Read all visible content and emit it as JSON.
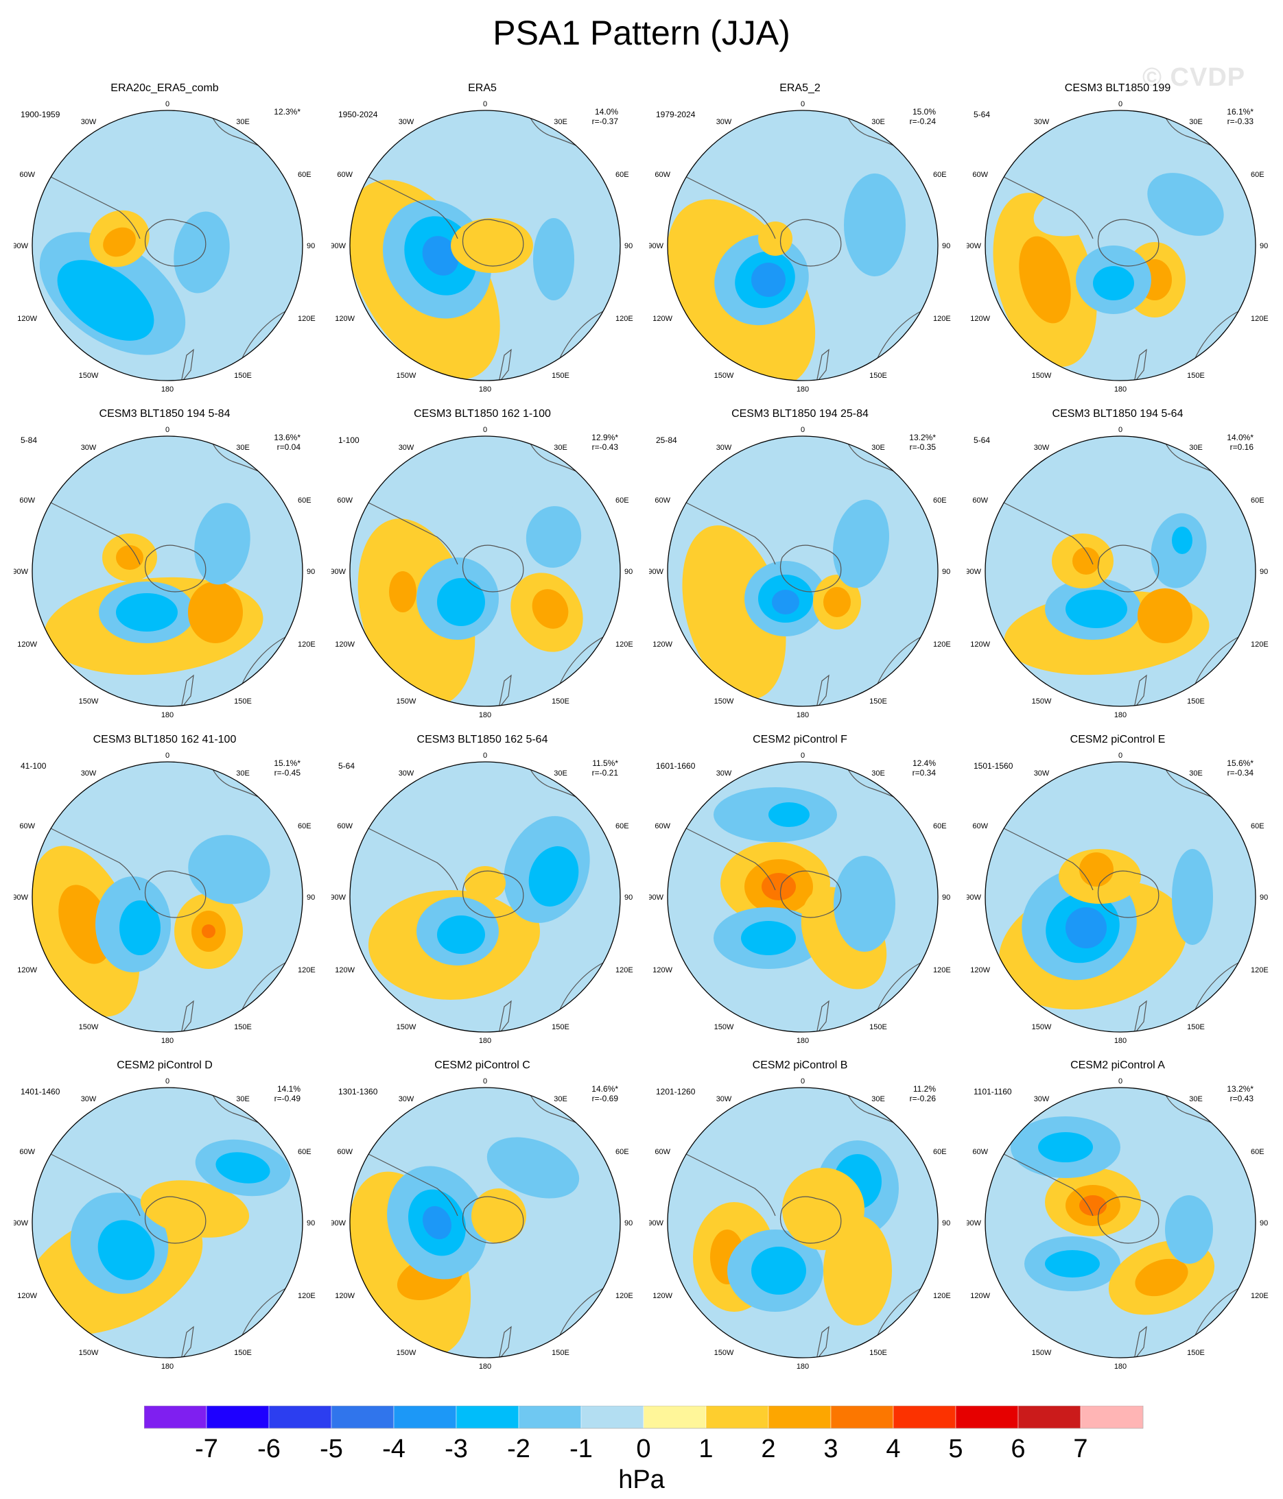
{
  "title": "PSA1 Pattern (JJA)",
  "watermark": "© CVDP",
  "unit": "hPa",
  "colorbar": {
    "colors": [
      "#7f1ff0",
      "#1e00ff",
      "#2c3ef0",
      "#3075ec",
      "#1c98f7",
      "#00bdfa",
      "#6fc8f2",
      "#b3def2",
      "#fff699",
      "#fece2e",
      "#fda600",
      "#fc7700",
      "#fc3200",
      "#e60000",
      "#cb1b1b",
      "#ffb5b5"
    ],
    "ticks": [
      "-7",
      "-6",
      "-5",
      "-4",
      "-3",
      "-2",
      "-1",
      "0",
      "1",
      "2",
      "3",
      "4",
      "5",
      "6",
      "7"
    ]
  },
  "map_labels": {
    "top": "0",
    "r1": "30E",
    "r2": "60E",
    "r3": "90E",
    "r4": "120E",
    "r5": "150E",
    "bottom": "180",
    "l1": "30W",
    "l2": "60W",
    "l3": "90W",
    "l4": "120W",
    "l5": "150W"
  },
  "panels": [
    {
      "title": "ERA20c_ERA5_comb",
      "period": "1900-1959",
      "stat1": "12.3%*",
      "stat2": ""
    },
    {
      "title": "ERA5",
      "period": "1950-2024",
      "stat1": "14.0%",
      "stat2": "r=-0.37"
    },
    {
      "title": "ERA5_2",
      "period": "1979-2024",
      "stat1": "15.0%",
      "stat2": "r=-0.24"
    },
    {
      "title": "CESM3 BLT1850 199",
      "period": "5-64",
      "stat1": "16.1%*",
      "stat2": "r=-0.33"
    },
    {
      "title": "CESM3 BLT1850 194 5-84",
      "period": "5-84",
      "stat1": "13.6%*",
      "stat2": "r=0.04"
    },
    {
      "title": "CESM3 BLT1850 162 1-100",
      "period": "1-100",
      "stat1": "12.9%*",
      "stat2": "r=-0.43"
    },
    {
      "title": "CESM3 BLT1850 194 25-84",
      "period": "25-84",
      "stat1": "13.2%*",
      "stat2": "r=-0.35"
    },
    {
      "title": "CESM3 BLT1850 194 5-64",
      "period": "5-64",
      "stat1": "14.0%*",
      "stat2": "r=0.16"
    },
    {
      "title": "CESM3 BLT1850 162 41-100",
      "period": "41-100",
      "stat1": "15.1%*",
      "stat2": "r=-0.45"
    },
    {
      "title": "CESM3 BLT1850 162 5-64",
      "period": "5-64",
      "stat1": "11.5%*",
      "stat2": "r=-0.21"
    },
    {
      "title": "CESM2 piControl F",
      "period": "1601-1660",
      "stat1": "12.4%",
      "stat2": "r=0.34"
    },
    {
      "title": "CESM2 piControl E",
      "period": "1501-1560",
      "stat1": "15.6%*",
      "stat2": "r=-0.34"
    },
    {
      "title": "CESM2 piControl D",
      "period": "1401-1460",
      "stat1": "14.1%",
      "stat2": "r=-0.49"
    },
    {
      "title": "CESM2 piControl C",
      "period": "1301-1360",
      "stat1": "14.6%*",
      "stat2": "r=-0.69"
    },
    {
      "title": "CESM2 piControl B",
      "period": "1201-1260",
      "stat1": "11.2%",
      "stat2": "r=-0.26"
    },
    {
      "title": "CESM2 piControl A",
      "period": "1101-1160",
      "stat1": "13.2%*",
      "stat2": "r=0.43"
    }
  ]
}
